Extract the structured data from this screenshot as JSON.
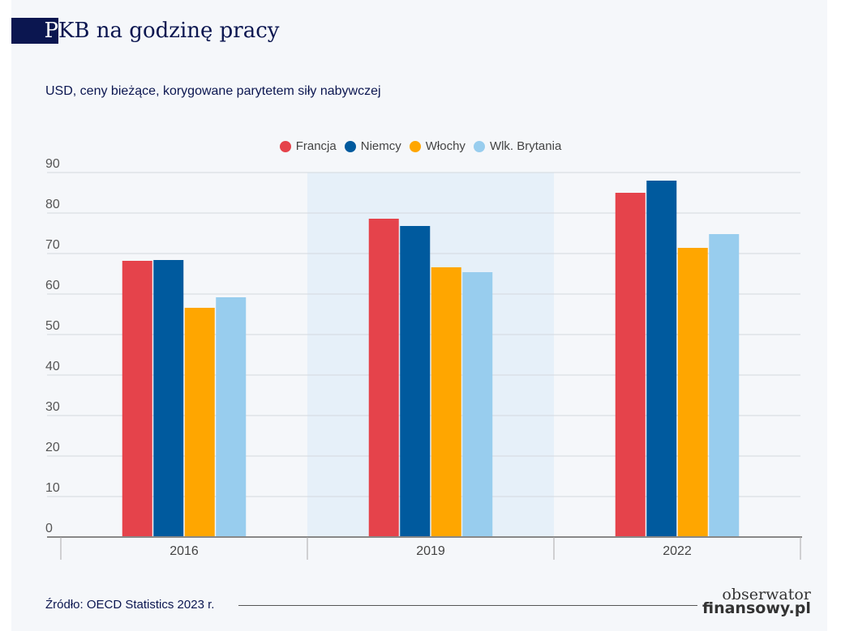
{
  "title": {
    "initial": "P",
    "rest": "KB na godzinę pracy"
  },
  "subtitle": "USD, ceny bieżące, korygowane parytetem siły nabywczej",
  "source": "Źródło: OECD Statistics 2023 r.",
  "logo": {
    "line1": "obserwator",
    "line2": "finansowy.pl"
  },
  "chart_data": {
    "type": "bar",
    "title": "PKB na godzinę pracy",
    "subtitle": "USD, ceny bieżące, korygowane parytetem siły nabywczej",
    "categories": [
      "2016",
      "2019",
      "2022"
    ],
    "series": [
      {
        "name": "Francja",
        "color": "#e5434b",
        "values": [
          68.2,
          78.6,
          85.0
        ]
      },
      {
        "name": "Niemcy",
        "color": "#005a9e",
        "values": [
          68.4,
          76.8,
          88.0
        ]
      },
      {
        "name": "Włochy",
        "color": "#ffa600",
        "values": [
          56.6,
          66.6,
          71.4
        ]
      },
      {
        "name": "Wlk. Brytania",
        "color": "#98cdee",
        "values": [
          59.2,
          65.4,
          74.8
        ]
      }
    ],
    "ylim": [
      0,
      90
    ],
    "yticks": [
      0,
      10,
      20,
      30,
      40,
      50,
      60,
      70,
      80,
      90
    ],
    "grid": true,
    "legend": "top-center",
    "highlighted_category": "2019"
  }
}
